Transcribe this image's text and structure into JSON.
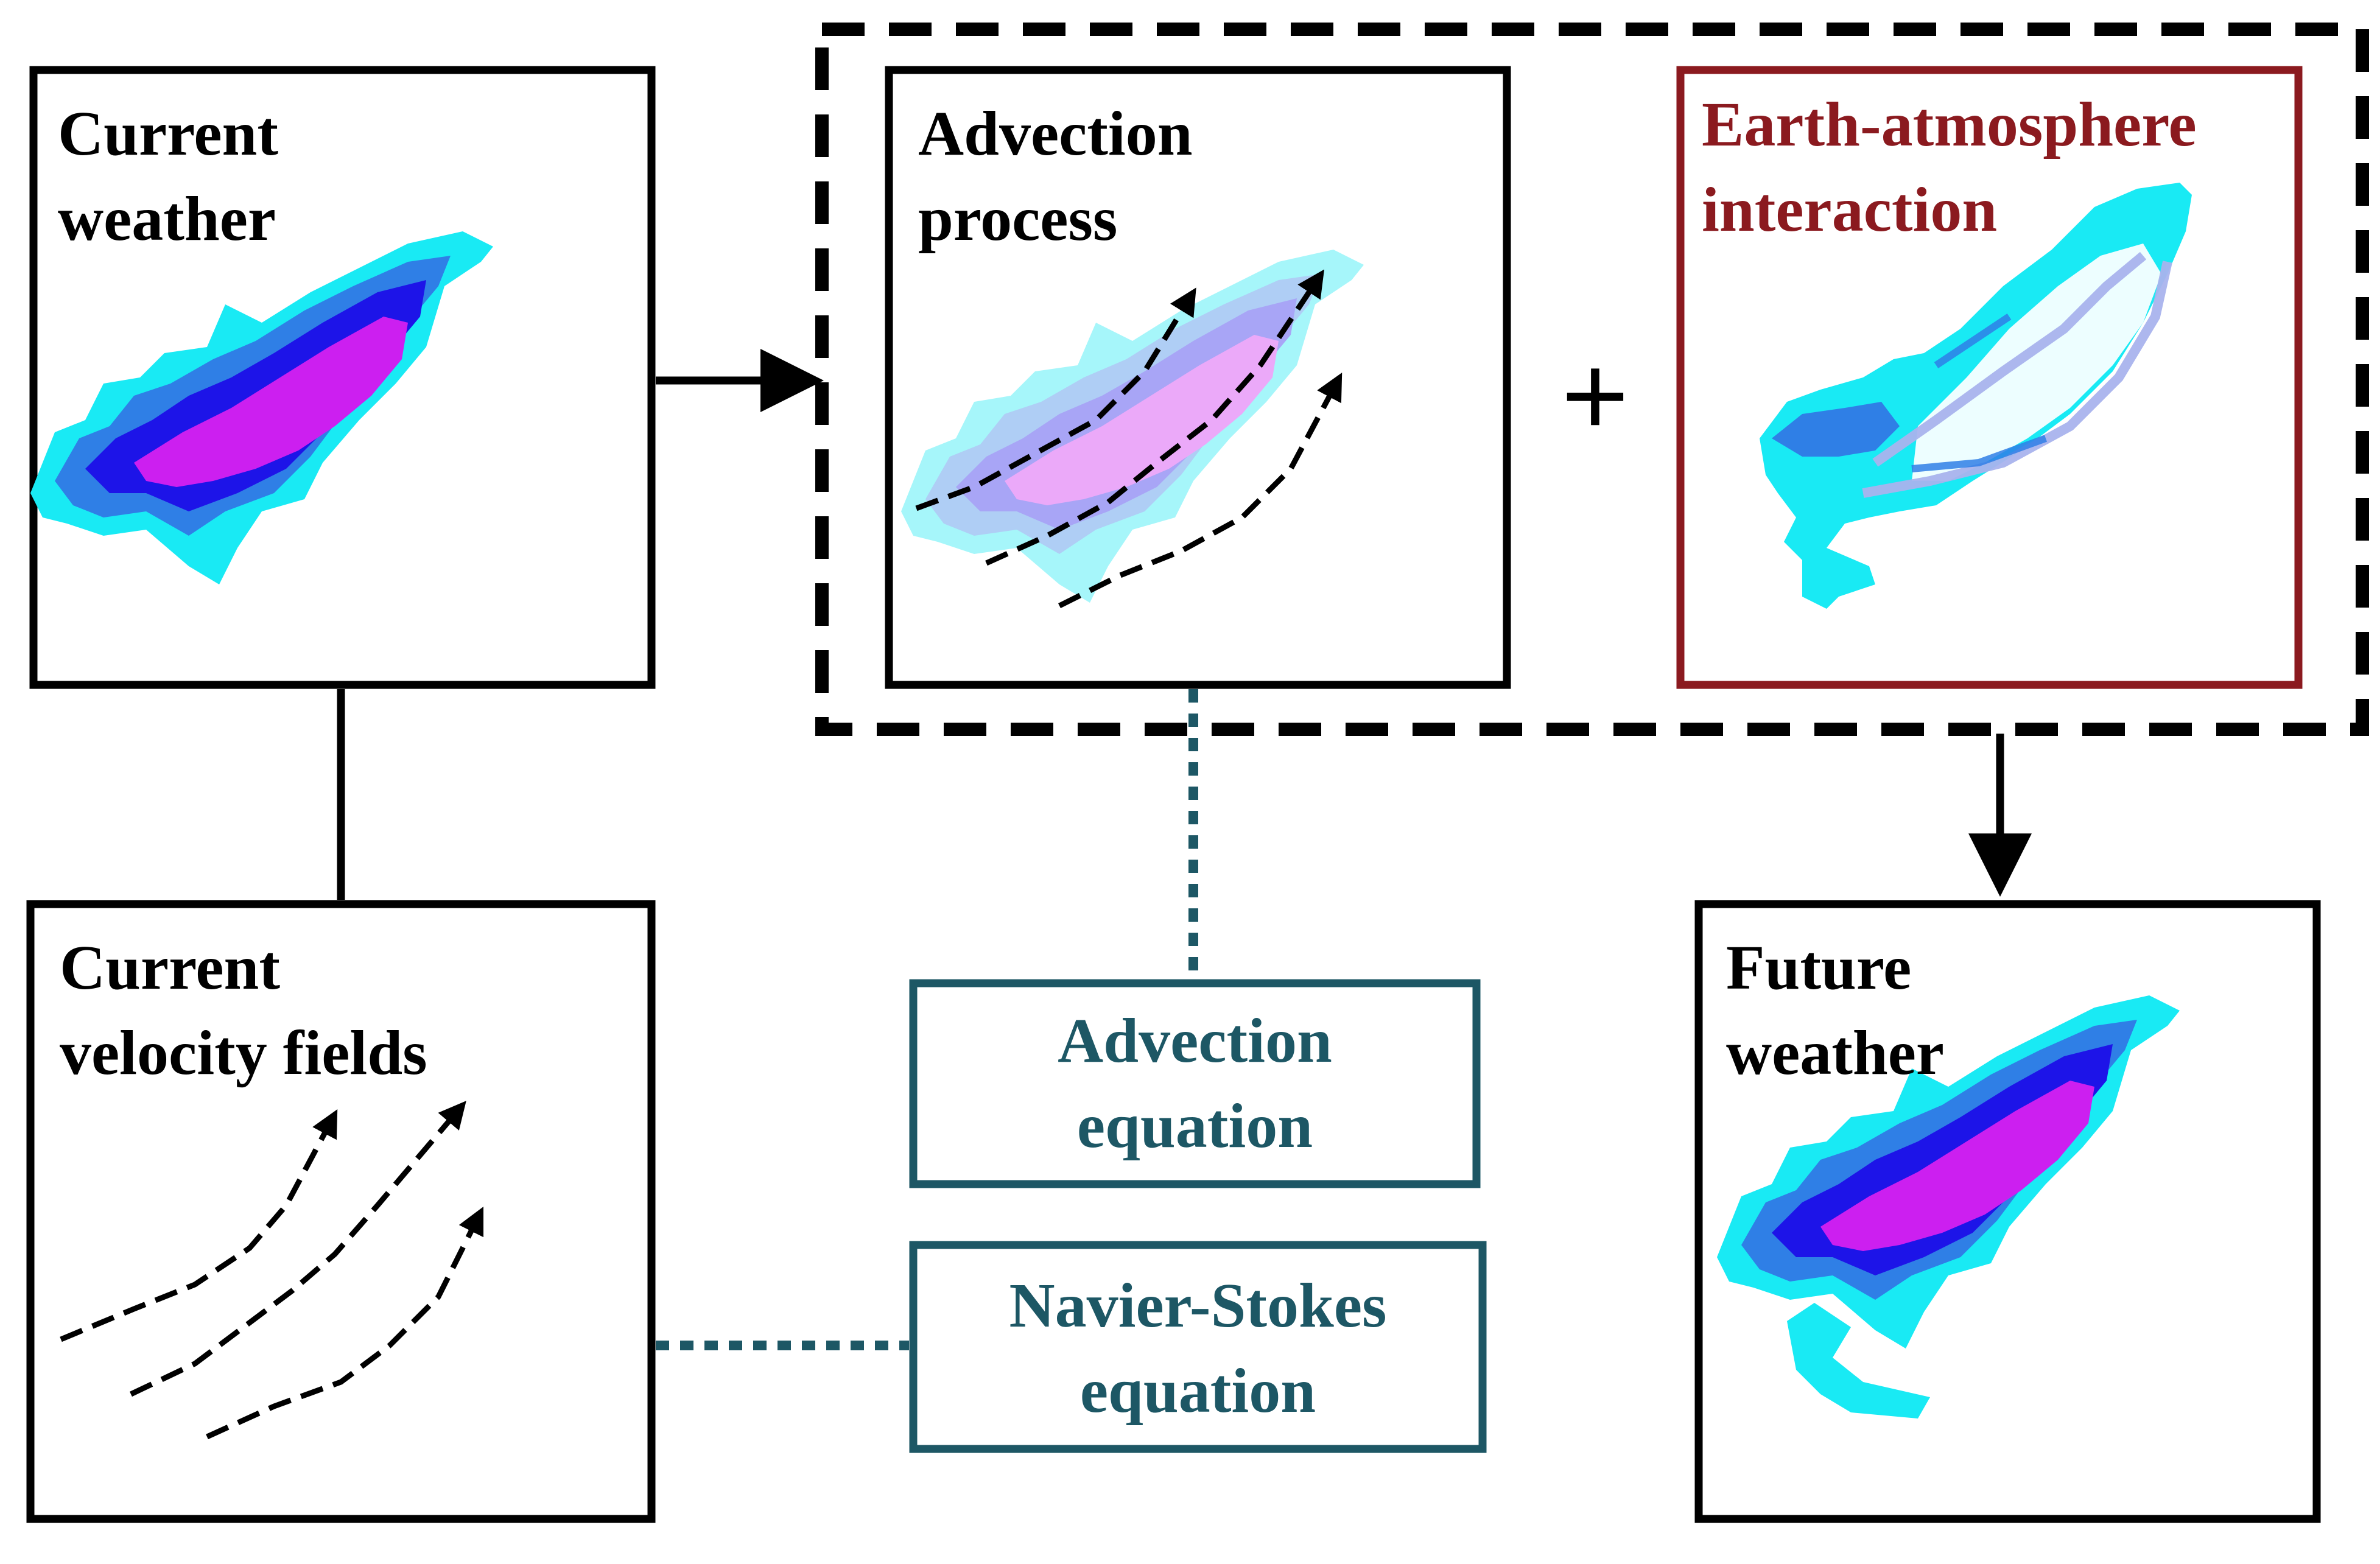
{
  "colors": {
    "black": "#000000",
    "earth_red": "#8b1a1f",
    "equation_teal": "#1d5765",
    "weather_cyan": "#19eaf4",
    "weather_mid_blue": "#2f7fe6",
    "weather_deep_blue": "#1d14e8",
    "weather_magenta": "#cc1ff0"
  },
  "panels": {
    "current_weather": {
      "line1": "Current",
      "line2": "weather"
    },
    "advection_process": {
      "line1": "Advection",
      "line2": "process"
    },
    "earth_atmosphere": {
      "line1": "Earth-atmosphere",
      "line2": "interaction"
    },
    "current_velocity": {
      "line1": "Current",
      "line2": "velocity fields"
    },
    "future_weather": {
      "line1": "Future",
      "line2": "weather"
    }
  },
  "equations": {
    "advection": {
      "line1": "Advection",
      "line2": "equation"
    },
    "navier_stokes": {
      "line1": "Navier-Stokes",
      "line2": "equation"
    }
  },
  "operator": "+"
}
